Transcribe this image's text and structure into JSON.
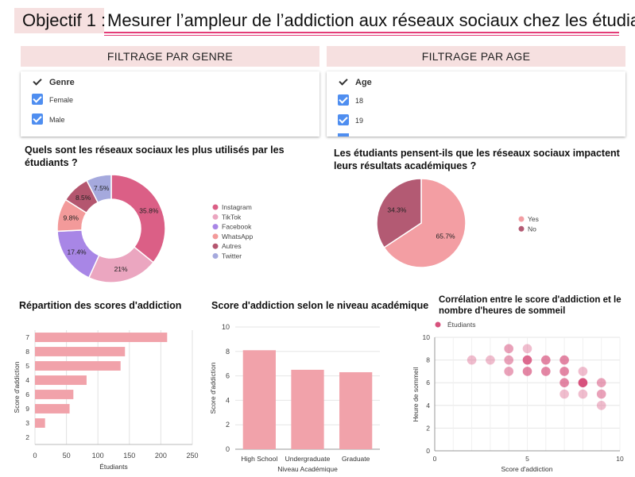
{
  "header": {
    "label": "Objectif 1 :",
    "title": "Mesurer l’ampleur de l’addiction aux réseaux sociaux chez les étudiants"
  },
  "colors": {
    "pink_bar": "#f1a2aa",
    "filter_bg": "#f6e0e0",
    "checkbox": "#4f8ef0",
    "underline": "#e33c77"
  },
  "filters": {
    "genre": {
      "heading": "FILTRAGE PAR GENRE",
      "field": "Genre",
      "options": [
        {
          "label": "Female",
          "checked": true
        },
        {
          "label": "Male",
          "checked": true
        }
      ]
    },
    "age": {
      "heading": "FILTRAGE PAR AGE",
      "field": "Age",
      "options": [
        {
          "label": "18",
          "checked": true
        },
        {
          "label": "19",
          "checked": true
        }
      ]
    }
  },
  "chart_data": [
    {
      "id": "networks",
      "type": "pie",
      "donut": true,
      "title": "Quels sont les réseaux sociaux les plus utilisés par les étudiants ?",
      "categories": [
        "Instagram",
        "TikTok",
        "Facebook",
        "WhatsApp",
        "Autres",
        "Twitter"
      ],
      "values": [
        35.8,
        21,
        17.4,
        9.8,
        8.5,
        7.5
      ],
      "labels": [
        "35.8%",
        "21%",
        "17.4%",
        "9.8%",
        "8.5%",
        "7.5%"
      ],
      "colors": [
        "#db5f86",
        "#eba6c0",
        "#a886e6",
        "#f39a9a",
        "#b4566f",
        "#a5a9dd"
      ],
      "legend": "right"
    },
    {
      "id": "impact",
      "type": "pie",
      "title": "Les étudiants pensent-ils que les réseaux sociaux impactent leurs résultats académiques ?",
      "categories": [
        "Yes",
        "No"
      ],
      "values": [
        65.7,
        34.3
      ],
      "labels": [
        "65.7%",
        "34.3%"
      ],
      "colors": [
        "#f39ea3",
        "#b35a73"
      ],
      "legend": "right"
    },
    {
      "id": "distribution",
      "type": "bar",
      "orientation": "horizontal",
      "title": "Répartition des scores d'addiction",
      "categories": [
        "7",
        "8",
        "5",
        "4",
        "6",
        "9",
        "3",
        "2"
      ],
      "values": [
        210,
        143,
        136,
        82,
        61,
        55,
        16,
        0
      ],
      "xlabel": "Étudiants",
      "ylabel": "Score d'addiction",
      "xlim": [
        0,
        250
      ],
      "xticks": [
        0,
        50,
        100,
        150,
        200,
        250
      ],
      "grid": true
    },
    {
      "id": "academic",
      "type": "bar",
      "title": "Score d'addiction selon le niveau académique",
      "categories": [
        "High School",
        "Undergraduate",
        "Graduate"
      ],
      "values": [
        8.1,
        6.5,
        6.3
      ],
      "xlabel": "Niveau Académique",
      "ylabel": "Score d'addiction",
      "ylim": [
        0,
        10
      ],
      "yticks": [
        0,
        2,
        4,
        6,
        8,
        10
      ],
      "grid": true
    },
    {
      "id": "correlation",
      "type": "scatter",
      "title": "Corrélation entre le score d'addiction et le nombre d'heures de sommeil",
      "series_name": "Étudiants",
      "xlabel": "Score d'addiction",
      "ylabel": "Heure de sommeil",
      "xlim": [
        0,
        10
      ],
      "ylim": [
        0,
        10
      ],
      "xticks": [
        0,
        5,
        10
      ],
      "yticks": [
        0,
        2,
        4,
        6,
        8,
        10
      ],
      "legend": "top-left",
      "points": [
        {
          "x": 2,
          "y": 8,
          "w": 1
        },
        {
          "x": 3,
          "y": 8,
          "w": 1
        },
        {
          "x": 4,
          "y": 9,
          "w": 2
        },
        {
          "x": 4,
          "y": 8,
          "w": 2
        },
        {
          "x": 4,
          "y": 7,
          "w": 2
        },
        {
          "x": 5,
          "y": 9,
          "w": 1
        },
        {
          "x": 5,
          "y": 8,
          "w": 4
        },
        {
          "x": 5,
          "y": 7,
          "w": 3
        },
        {
          "x": 6,
          "y": 8,
          "w": 3
        },
        {
          "x": 6,
          "y": 7,
          "w": 3
        },
        {
          "x": 7,
          "y": 8,
          "w": 3
        },
        {
          "x": 7,
          "y": 7,
          "w": 3
        },
        {
          "x": 7,
          "y": 6,
          "w": 3
        },
        {
          "x": 7,
          "y": 5,
          "w": 1
        },
        {
          "x": 8,
          "y": 7,
          "w": 1
        },
        {
          "x": 8,
          "y": 6,
          "w": 5
        },
        {
          "x": 8,
          "y": 5,
          "w": 1
        },
        {
          "x": 9,
          "y": 6,
          "w": 2
        },
        {
          "x": 9,
          "y": 5,
          "w": 2
        },
        {
          "x": 9,
          "y": 4,
          "w": 1
        }
      ]
    }
  ]
}
